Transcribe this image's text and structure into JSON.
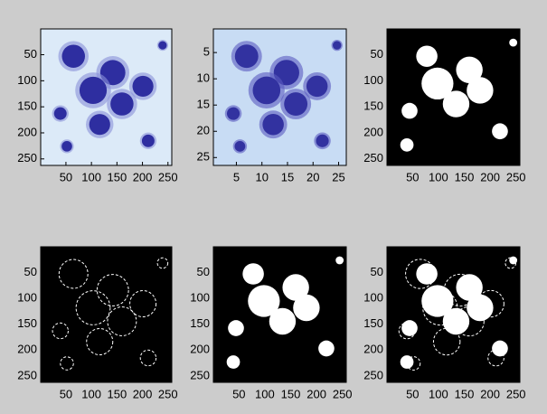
{
  "chart_data": [
    {
      "type": "image",
      "xlim": [
        0.5,
        257.5
      ],
      "ylim": [
        0.5,
        262.5
      ],
      "xticks": [
        50,
        100,
        150,
        200,
        250
      ],
      "yticks": [
        50,
        100,
        150,
        200,
        250
      ]
    },
    {
      "type": "image",
      "xlim": [
        0.5,
        26.5
      ],
      "ylim": [
        0.5,
        26.5
      ],
      "xticks": [
        5,
        10,
        15,
        20,
        25
      ],
      "yticks": [
        5,
        10,
        15,
        20,
        25
      ]
    },
    {
      "type": "image",
      "xlim": [
        0.5,
        257.5
      ],
      "ylim": [
        0.5,
        262.5
      ],
      "xticks": [
        50,
        100,
        150,
        200,
        250
      ],
      "yticks": [
        50,
        100,
        150,
        200,
        250
      ]
    },
    {
      "type": "image",
      "xlim": [
        0.5,
        257.5
      ],
      "ylim": [
        0.5,
        262.5
      ],
      "xticks": [
        50,
        100,
        150,
        200,
        250
      ],
      "yticks": [
        50,
        100,
        150,
        200,
        250
      ]
    },
    {
      "type": "image",
      "xlim": [
        0.5,
        257.5
      ],
      "ylim": [
        0.5,
        262.5
      ],
      "xticks": [
        50,
        100,
        150,
        200,
        250
      ],
      "yticks": [
        50,
        100,
        150,
        200,
        250
      ]
    },
    {
      "type": "image",
      "xlim": [
        0.5,
        257.5
      ],
      "ylim": [
        0.5,
        262.5
      ],
      "xticks": [
        50,
        100,
        150,
        200,
        250
      ],
      "yticks": [
        50,
        100,
        150,
        200,
        250
      ]
    }
  ]
}
